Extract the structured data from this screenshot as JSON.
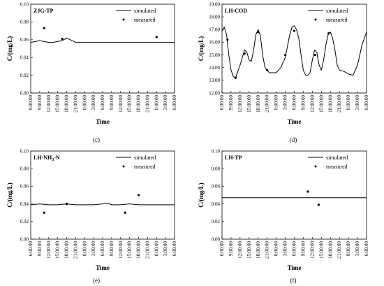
{
  "x_ticks": [
    "6:00:00",
    "9:00:00",
    "12:00:00",
    "15:00:00",
    "18:00:00",
    "21:00:00",
    "0:00:00",
    "3:00:00",
    "6:00:00",
    "9:00:00",
    "12:00:00",
    "15:00:00",
    "18:00:00",
    "21:00:00",
    "0:00:00",
    "3:00:00",
    "6:00:00"
  ],
  "colors": {
    "line": "#000000",
    "axis": "#000000",
    "background": "#ffffff"
  },
  "chart_data": [
    {
      "type": "line",
      "panel": "c",
      "title": "ZJG-TP",
      "caption": "(c)",
      "xlabel": "Time",
      "ylabel": "C/(mg/L)",
      "ylim": [
        0,
        0.1
      ],
      "yticks": [
        "0.00",
        "0.02",
        "0.04",
        "0.06",
        "0.08",
        "0.10"
      ],
      "legend": {
        "placement": "top-right",
        "entries": [
          "simulated",
          "measured"
        ]
      },
      "series": [
        {
          "name": "simulated",
          "kind": "line",
          "x": [
            0,
            1,
            2,
            2.5,
            3,
            3.5,
            4,
            5,
            6,
            8,
            10,
            12,
            14,
            16
          ],
          "y": [
            0.057,
            0.059,
            0.057,
            0.057,
            0.058,
            0.059,
            0.062,
            0.057,
            0.057,
            0.057,
            0.057,
            0.057,
            0.057,
            0.057
          ]
        },
        {
          "name": "measured",
          "kind": "point",
          "x": [
            1.5,
            3.5,
            14
          ],
          "y": [
            0.073,
            0.061,
            0.063
          ]
        }
      ]
    },
    {
      "type": "line",
      "panel": "d",
      "title": "LH-COD",
      "caption": "(d)",
      "xlabel": "Time",
      "ylabel": "C/(mg/L)",
      "ylim": [
        12,
        19
      ],
      "yticks": [
        "12.00",
        "13.00",
        "14.00",
        "15.00",
        "16.00",
        "17.00",
        "18.00",
        "19.00"
      ],
      "legend": {
        "placement": "top-right",
        "entries": [
          "simulated",
          "measured"
        ]
      },
      "series": [
        {
          "name": "simulated",
          "kind": "line",
          "x": [
            0,
            0.25,
            0.5,
            0.75,
            1,
            1.25,
            1.5,
            2,
            2.5,
            2.75,
            3,
            3.25,
            3.5,
            3.75,
            4,
            4.25,
            4.5,
            4.75,
            5,
            5.25,
            5.5,
            6,
            6.5,
            7,
            7.5,
            7.75,
            8,
            8.25,
            8.5,
            8.75,
            9,
            9.25,
            9.5,
            9.75,
            10,
            10.25,
            10.5,
            10.75,
            11,
            11.25,
            11.5,
            11.75,
            12,
            12.25,
            12.5,
            12.75,
            13,
            13.5,
            14,
            14.5,
            15,
            15.5,
            16
          ],
          "y": [
            16.9,
            17.2,
            16.6,
            15.0,
            13.8,
            13.3,
            13.2,
            14.2,
            15.4,
            15.2,
            14.6,
            14.5,
            15.4,
            16.6,
            17.0,
            16.5,
            15.0,
            14.0,
            13.8,
            13.6,
            13.6,
            13.6,
            14.0,
            14.8,
            16.6,
            17.2,
            17.3,
            17.0,
            16.3,
            15.0,
            13.8,
            13.4,
            13.4,
            13.6,
            14.6,
            15.4,
            15.2,
            14.2,
            13.8,
            14.6,
            15.8,
            16.6,
            16.8,
            16.3,
            15.4,
            14.2,
            13.8,
            13.7,
            13.5,
            13.4,
            14.2,
            15.8,
            16.8
          ]
        },
        {
          "name": "measured",
          "kind": "point",
          "x": [
            0.6,
            1.5,
            2.5,
            4,
            5,
            7,
            8,
            10.3,
            11.8
          ],
          "y": [
            16.2,
            13.2,
            15.1,
            16.8,
            13.8,
            15.0,
            16.9,
            15.0,
            16.7
          ]
        }
      ]
    },
    {
      "type": "line",
      "panel": "e",
      "title": "LH-NH3-N",
      "caption": "(e)",
      "xlabel": "Time",
      "ylabel": "C/(mg/L)",
      "ylim": [
        0,
        0.1
      ],
      "yticks": [
        "0.00",
        "0.02",
        "0.04",
        "0.06",
        "0.08",
        "0.10"
      ],
      "legend": {
        "placement": "top-right",
        "entries": [
          "simulated",
          "measured"
        ]
      },
      "series": [
        {
          "name": "simulated",
          "kind": "line",
          "x": [
            0,
            1,
            2,
            3,
            4,
            5,
            6,
            7,
            8,
            8.5,
            9,
            10,
            11,
            12,
            13,
            14,
            15,
            16
          ],
          "y": [
            0.039,
            0.04,
            0.039,
            0.039,
            0.04,
            0.039,
            0.039,
            0.039,
            0.04,
            0.041,
            0.039,
            0.039,
            0.04,
            0.039,
            0.039,
            0.039,
            0.039,
            0.039
          ]
        },
        {
          "name": "measured",
          "kind": "point",
          "x": [
            1.5,
            4,
            10.5,
            12
          ],
          "y": [
            0.03,
            0.04,
            0.03,
            0.05
          ]
        }
      ]
    },
    {
      "type": "line",
      "panel": "f",
      "title": "LH-TP",
      "caption": "(f)",
      "xlabel": "Time",
      "ylabel": "C/(mg/L)",
      "ylim": [
        0,
        0.1
      ],
      "yticks": [
        "0.00",
        "0.02",
        "0.04",
        "0.06",
        "0.08",
        "0.10"
      ],
      "legend": {
        "placement": "top-right",
        "entries": [
          "simulated",
          "measured"
        ]
      },
      "series": [
        {
          "name": "simulated",
          "kind": "line",
          "x": [
            0,
            2,
            4,
            6,
            8,
            10,
            12,
            14,
            16
          ],
          "y": [
            0.047,
            0.047,
            0.047,
            0.047,
            0.047,
            0.047,
            0.047,
            0.047,
            0.047
          ]
        },
        {
          "name": "measured",
          "kind": "point",
          "x": [
            9.5,
            10.7
          ],
          "y": [
            0.054,
            0.039
          ]
        }
      ]
    }
  ]
}
